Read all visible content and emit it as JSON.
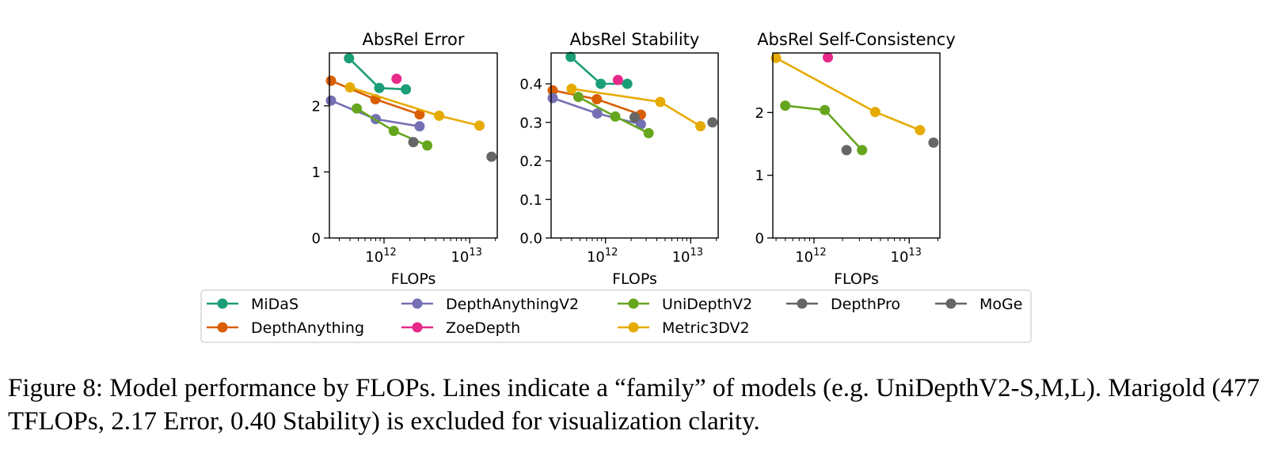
{
  "figure": {
    "caption": "Figure 8: Model performance by FLOPs. Lines indicate a “family” of models (e.g. UniDepthV2-S,M,L). Marigold (477 TFLOPs, 2.17 Error, 0.40 Stability) is excluded for visualization clarity."
  },
  "colors": {
    "MiDaS": "#1b9e77",
    "DepthAnything": "#d95f02",
    "DepthAnythingV2": "#7570b3",
    "ZoeDepth": "#e7298a",
    "UniDepthV2": "#66a61e",
    "Metric3DV2": "#e6ab02",
    "DepthPro": "#666666",
    "MoGe": "#666666"
  },
  "legend": {
    "items": [
      "MiDaS",
      "DepthAnything",
      "DepthAnythingV2",
      "ZoeDepth",
      "UniDepthV2",
      "Metric3DV2",
      "DepthPro",
      "MoGe"
    ]
  },
  "chart_data": [
    {
      "type": "line",
      "title": "AbsRel Error",
      "xlabel": "FLOPs",
      "ylabel": "",
      "xscale": "log",
      "xlim": [
        230000000000.0,
        21000000000000.0
      ],
      "ylim": [
        0,
        2.8
      ],
      "yticks": [
        0,
        1,
        2
      ],
      "ytick_labels": [
        "0",
        "1",
        "2"
      ],
      "xticks": [
        1000000000000.0,
        10000000000000.0
      ],
      "xtick_labels": [
        "10^12",
        "10^13"
      ],
      "series": [
        {
          "name": "MiDaS",
          "x": [
            390000000000.0,
            880000000000.0,
            1800000000000.0
          ],
          "y": [
            2.72,
            2.27,
            2.25
          ]
        },
        {
          "name": "DepthAnything",
          "x": [
            240000000000.0,
            790000000000.0,
            2600000000000.0
          ],
          "y": [
            2.38,
            2.1,
            1.87
          ]
        },
        {
          "name": "DepthAnythingV2",
          "x": [
            240000000000.0,
            800000000000.0,
            2600000000000.0
          ],
          "y": [
            2.08,
            1.8,
            1.69
          ]
        },
        {
          "name": "ZoeDepth",
          "x": [
            1400000000000.0
          ],
          "y": [
            2.41
          ]
        },
        {
          "name": "UniDepthV2",
          "x": [
            480000000000.0,
            1300000000000.0,
            3200000000000.0
          ],
          "y": [
            1.96,
            1.62,
            1.4
          ]
        },
        {
          "name": "Metric3DV2",
          "x": [
            400000000000.0,
            4400000000000.0,
            13000000000000.0
          ],
          "y": [
            2.28,
            1.85,
            1.7
          ]
        },
        {
          "name": "DepthPro",
          "x": [
            2200000000000.0
          ],
          "y": [
            1.45
          ]
        },
        {
          "name": "MoGe",
          "x": [
            18000000000000.0
          ],
          "y": [
            1.23
          ]
        }
      ]
    },
    {
      "type": "line",
      "title": "AbsRel Stability",
      "xlabel": "FLOPs",
      "ylabel": "",
      "xscale": "log",
      "xlim": [
        230000000000.0,
        21000000000000.0
      ],
      "ylim": [
        0,
        0.48
      ],
      "yticks": [
        0,
        0.1,
        0.2,
        0.3,
        0.4
      ],
      "ytick_labels": [
        "0.0",
        "0.1",
        "0.2",
        "0.3",
        "0.4"
      ],
      "xticks": [
        1000000000000.0,
        10000000000000.0
      ],
      "xtick_labels": [
        "10^12",
        "10^13"
      ],
      "series": [
        {
          "name": "MiDaS",
          "x": [
            390000000000.0,
            880000000000.0,
            1800000000000.0
          ],
          "y": [
            0.47,
            0.4,
            0.4
          ]
        },
        {
          "name": "DepthAnything",
          "x": [
            240000000000.0,
            790000000000.0,
            2600000000000.0
          ],
          "y": [
            0.383,
            0.36,
            0.32
          ]
        },
        {
          "name": "DepthAnythingV2",
          "x": [
            240000000000.0,
            800000000000.0,
            2600000000000.0
          ],
          "y": [
            0.363,
            0.323,
            0.295
          ]
        },
        {
          "name": "ZoeDepth",
          "x": [
            1400000000000.0
          ],
          "y": [
            0.41
          ]
        },
        {
          "name": "UniDepthV2",
          "x": [
            480000000000.0,
            1300000000000.0,
            3200000000000.0
          ],
          "y": [
            0.366,
            0.315,
            0.272
          ]
        },
        {
          "name": "Metric3DV2",
          "x": [
            400000000000.0,
            4400000000000.0,
            13000000000000.0
          ],
          "y": [
            0.387,
            0.353,
            0.29
          ]
        },
        {
          "name": "DepthPro",
          "x": [
            2200000000000.0
          ],
          "y": [
            0.313
          ]
        },
        {
          "name": "MoGe",
          "x": [
            18000000000000.0
          ],
          "y": [
            0.3
          ]
        }
      ]
    },
    {
      "type": "line",
      "title": "AbsRel Self-Consistency",
      "xlabel": "FLOPs",
      "ylabel": "",
      "xscale": "log",
      "xlim": [
        370000000000.0,
        21000000000000.0
      ],
      "ylim": [
        0,
        2.95
      ],
      "yticks": [
        0,
        1,
        2
      ],
      "ytick_labels": [
        "0",
        "1",
        "2"
      ],
      "xticks": [
        1000000000000.0,
        10000000000000.0
      ],
      "xtick_labels": [
        "10^12",
        "10^13"
      ],
      "series": [
        {
          "name": "UniDepthV2",
          "x": [
            500000000000.0,
            1300000000000.0,
            3200000000000.0
          ],
          "y": [
            2.11,
            2.04,
            1.4
          ]
        },
        {
          "name": "Metric3DV2",
          "x": [
            400000000000.0,
            4400000000000.0,
            13000000000000.0
          ],
          "y": [
            2.87,
            2.01,
            1.72
          ]
        },
        {
          "name": "ZoeDepth",
          "x": [
            1400000000000.0
          ],
          "y": [
            2.88
          ]
        },
        {
          "name": "DepthPro",
          "x": [
            2200000000000.0
          ],
          "y": [
            1.4
          ]
        },
        {
          "name": "MoGe",
          "x": [
            18000000000000.0
          ],
          "y": [
            1.52
          ]
        }
      ]
    }
  ]
}
